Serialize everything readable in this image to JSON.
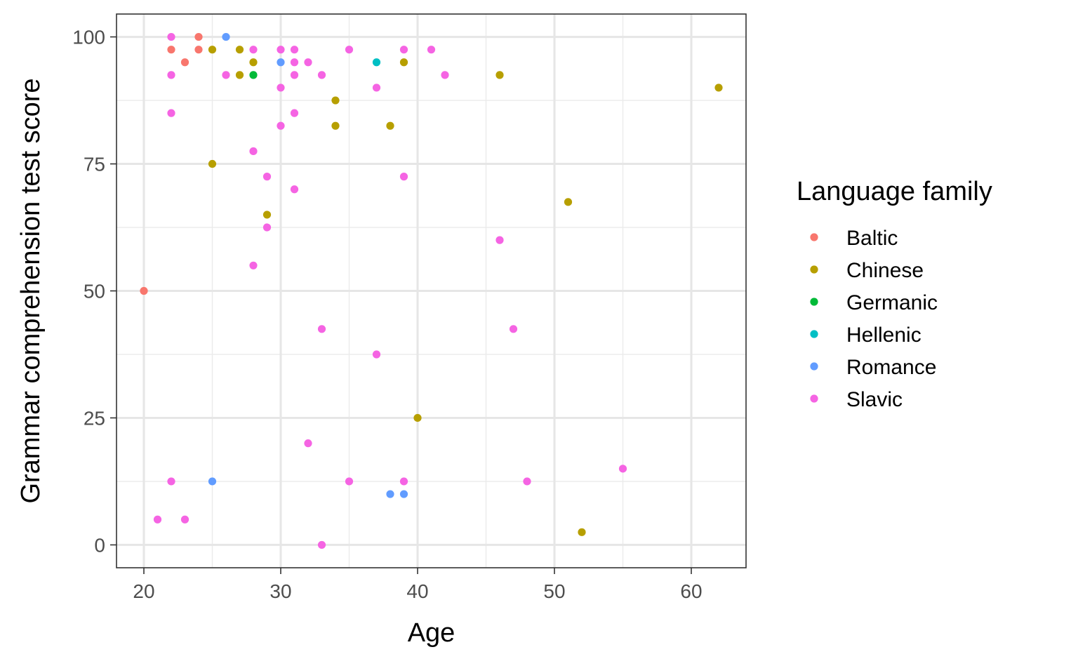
{
  "chart_data": {
    "type": "scatter",
    "xlabel": "Age",
    "ylabel": "Grammar comprehension test score",
    "xlim": [
      18,
      64
    ],
    "ylim": [
      -4.5,
      104.5
    ],
    "x_ticks": [
      20,
      30,
      40,
      50,
      60
    ],
    "y_ticks": [
      0,
      25,
      50,
      75,
      100
    ],
    "x_tick_labels": [
      "20",
      "30",
      "40",
      "50",
      "60"
    ],
    "y_tick_labels": [
      "0",
      "25",
      "50",
      "75",
      "100"
    ],
    "grid": true,
    "legend": {
      "title": "Language family",
      "position": "right"
    },
    "series": [
      {
        "name": "Baltic",
        "color": "#F8766D",
        "points": [
          [
            20,
            50
          ],
          [
            22,
            97.5
          ],
          [
            23,
            95
          ],
          [
            24,
            100
          ],
          [
            24,
            97.5
          ]
        ]
      },
      {
        "name": "Chinese",
        "color": "#B79F00",
        "points": [
          [
            25,
            97.5
          ],
          [
            25,
            75
          ],
          [
            27,
            97.5
          ],
          [
            27,
            92.5
          ],
          [
            28,
            95
          ],
          [
            29,
            65
          ],
          [
            34,
            87.5
          ],
          [
            34,
            82.5
          ],
          [
            38,
            82.5
          ],
          [
            39,
            95
          ],
          [
            40,
            25
          ],
          [
            46,
            92.5
          ],
          [
            51,
            67.5
          ],
          [
            52,
            2.5
          ],
          [
            62,
            90
          ]
        ]
      },
      {
        "name": "Germanic",
        "color": "#00BA38",
        "points": [
          [
            28,
            92.5
          ]
        ]
      },
      {
        "name": "Hellenic",
        "color": "#00BFC4",
        "points": [
          [
            37,
            95
          ]
        ]
      },
      {
        "name": "Romance",
        "color": "#619CFF",
        "points": [
          [
            26,
            100
          ],
          [
            30,
            95
          ],
          [
            25,
            12.5
          ],
          [
            38,
            10
          ],
          [
            39,
            10
          ]
        ]
      },
      {
        "name": "Slavic",
        "color": "#F564E3",
        "points": [
          [
            22,
            100
          ],
          [
            22,
            92.5
          ],
          [
            22,
            85
          ],
          [
            22,
            12.5
          ],
          [
            21,
            5
          ],
          [
            23,
            5
          ],
          [
            26,
            92.5
          ],
          [
            28,
            97.5
          ],
          [
            28,
            77.5
          ],
          [
            28,
            55
          ],
          [
            29,
            72.5
          ],
          [
            29,
            62.5
          ],
          [
            30,
            97.5
          ],
          [
            30,
            90
          ],
          [
            30,
            82.5
          ],
          [
            31,
            97.5
          ],
          [
            31,
            95
          ],
          [
            31,
            92.5
          ],
          [
            31,
            85
          ],
          [
            31,
            70
          ],
          [
            32,
            95
          ],
          [
            32,
            20
          ],
          [
            33,
            92.5
          ],
          [
            33,
            42.5
          ],
          [
            33,
            0
          ],
          [
            35,
            97.5
          ],
          [
            35,
            12.5
          ],
          [
            37,
            90
          ],
          [
            37,
            37.5
          ],
          [
            39,
            97.5
          ],
          [
            39,
            72.5
          ],
          [
            39,
            12.5
          ],
          [
            41,
            97.5
          ],
          [
            42,
            92.5
          ],
          [
            46,
            60
          ],
          [
            47,
            42.5
          ],
          [
            48,
            12.5
          ],
          [
            55,
            15
          ]
        ]
      }
    ]
  }
}
